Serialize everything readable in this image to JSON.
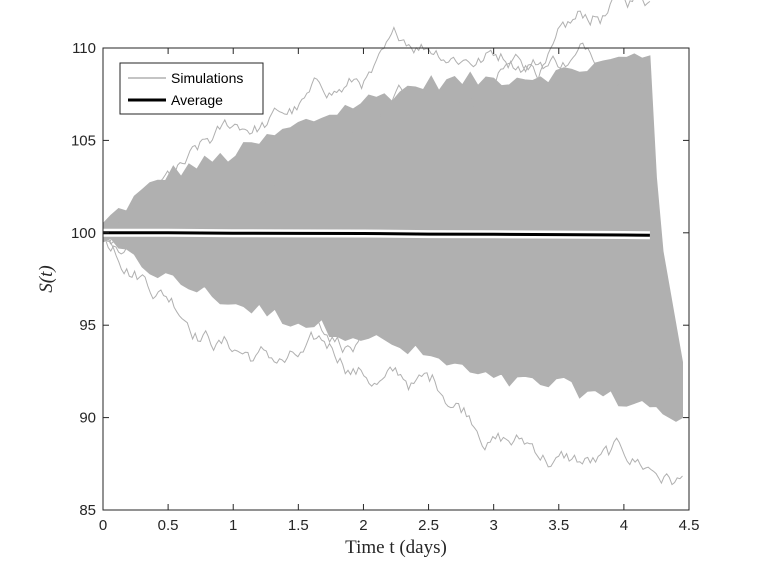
{
  "chart_data": {
    "type": "line",
    "title": "",
    "xlabel": "Time t (days)",
    "ylabel": "S(t)",
    "xlim": [
      0,
      4.5
    ],
    "ylim": [
      85,
      110
    ],
    "xticks": [
      0,
      0.5,
      1,
      1.5,
      2,
      2.5,
      3,
      3.5,
      4,
      4.5
    ],
    "xtick_labels": [
      "0",
      "0.5",
      "1",
      "1.5",
      "2",
      "2.5",
      "3",
      "3.5",
      "4",
      "4.5"
    ],
    "yticks": [
      85,
      90,
      95,
      100,
      105,
      110
    ],
    "ytick_labels": [
      "85",
      "90",
      "95",
      "100",
      "105",
      "110"
    ],
    "grid": false,
    "legend_position": "top-left",
    "series": [
      {
        "name": "Simulations",
        "color": "#b0b0b0",
        "style": "thin-band",
        "x": [
          0,
          0.5,
          1,
          1.5,
          2,
          2.5,
          3,
          3.5,
          4,
          4.2
        ],
        "upper": [
          100.5,
          103.2,
          104.2,
          105.8,
          107.1,
          108.1,
          108.3,
          108.6,
          109.4,
          109.7
        ],
        "lower": [
          99.5,
          97.5,
          96.2,
          95.2,
          94.4,
          93.3,
          92.0,
          91.8,
          90.9,
          90.7
        ],
        "tail_x": [
          4.2,
          4.25,
          4.3,
          4.35,
          4.4,
          4.45
        ],
        "tail_upper": [
          109.7,
          103,
          99,
          97,
          95,
          93
        ],
        "tail_lower": [
          90.7,
          90.6,
          90.2,
          90.0,
          89.8,
          90.0
        ]
      },
      {
        "name": "Average",
        "color": "#000000",
        "style": "thick-line",
        "x": [
          0,
          0.5,
          1,
          1.5,
          2,
          2.5,
          3,
          3.5,
          4,
          4.2
        ],
        "y": [
          100.0,
          100.0,
          99.98,
          99.97,
          99.96,
          99.93,
          99.92,
          99.9,
          99.88,
          99.87
        ]
      }
    ]
  }
}
